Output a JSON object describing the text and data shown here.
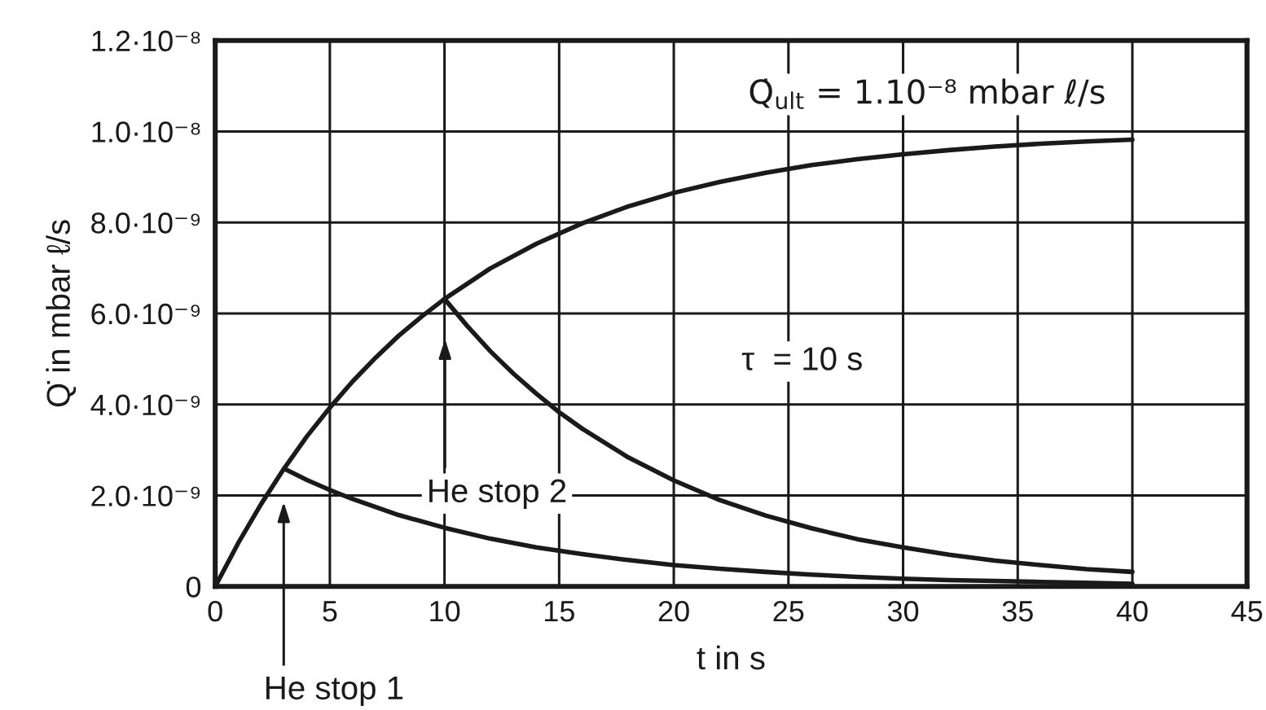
{
  "chart_data": {
    "type": "line",
    "xlabel": "t in s",
    "ylabel": "Q̇ in mbar ℓ/s",
    "series": [
      {
        "color": "#1a1a1a",
        "x": [
          0,
          1,
          2,
          3,
          4,
          5,
          6,
          7,
          8,
          9,
          10,
          12,
          14,
          16,
          18,
          20,
          22,
          24,
          26,
          28,
          30,
          32,
          34,
          36,
          38,
          40
        ],
        "values": [
          0,
          9.5e-10,
          1.81e-09,
          2.59e-09,
          3.3e-09,
          3.93e-09,
          4.51e-09,
          5.03e-09,
          5.51e-09,
          5.93e-09,
          6.32e-09,
          6.99e-09,
          7.53e-09,
          7.98e-09,
          8.35e-09,
          8.65e-09,
          8.89e-09,
          9.09e-09,
          9.26e-09,
          9.39e-09,
          9.5e-09,
          9.59e-09,
          9.67e-09,
          9.73e-09,
          9.78e-09,
          9.82e-09
        ]
      },
      {
        "color": "#1a1a1a",
        "x": [
          3,
          4,
          5,
          6,
          8,
          10,
          12,
          14,
          16,
          18,
          20,
          22,
          24,
          26,
          28,
          30,
          32,
          34,
          36,
          38,
          40
        ],
        "values": [
          2.59e-09,
          2.34e-09,
          2.12e-09,
          1.92e-09,
          1.57e-09,
          1.29e-09,
          1.05e-09,
          8.6e-10,
          7.1e-10,
          5.8e-10,
          4.7e-10,
          3.9e-10,
          3.2e-10,
          2.6e-10,
          2.1e-10,
          1.7e-10,
          1.4e-10,
          1.2e-10,
          1e-10,
          8e-11,
          6e-11
        ]
      },
      {
        "color": "#1a1a1a",
        "x": [
          10,
          11,
          12,
          13,
          14,
          15,
          16,
          18,
          20,
          22,
          24,
          26,
          28,
          30,
          32,
          34,
          36,
          38,
          40
        ],
        "values": [
          6.32e-09,
          5.72e-09,
          5.17e-09,
          4.68e-09,
          4.24e-09,
          3.83e-09,
          3.47e-09,
          2.84e-09,
          2.33e-09,
          1.9e-09,
          1.56e-09,
          1.28e-09,
          1.04e-09,
          8.6e-10,
          7e-10,
          5.7e-10,
          4.7e-10,
          3.8e-10,
          3.2e-10
        ]
      }
    ],
    "xlim": [
      0,
      45
    ],
    "xticks": [
      0,
      5,
      10,
      15,
      20,
      25,
      30,
      35,
      40,
      45
    ],
    "ylim": [
      0,
      1.2e-08
    ],
    "yticks": [
      0,
      {
        "value": 2e-09,
        "label": "2.0·10⁻⁹"
      },
      {
        "value": 4e-09,
        "label": "4.0·10⁻⁹"
      },
      {
        "value": 6e-09,
        "label": "6.0·10⁻⁹"
      },
      {
        "value": 8e-09,
        "label": "8.0·10⁻⁹"
      },
      {
        "value": 1e-08,
        "label": "1.0·10⁻⁸"
      },
      {
        "value": 1.2e-08,
        "label": "1.2·10⁻⁸"
      }
    ],
    "grid": true,
    "annotations": [
      "Q̇$_{ult}$ = 1.10⁻⁸ mbar ℓ/s",
      "τ  = 10 s",
      "He stop 1",
      "He stop 2"
    ]
  }
}
